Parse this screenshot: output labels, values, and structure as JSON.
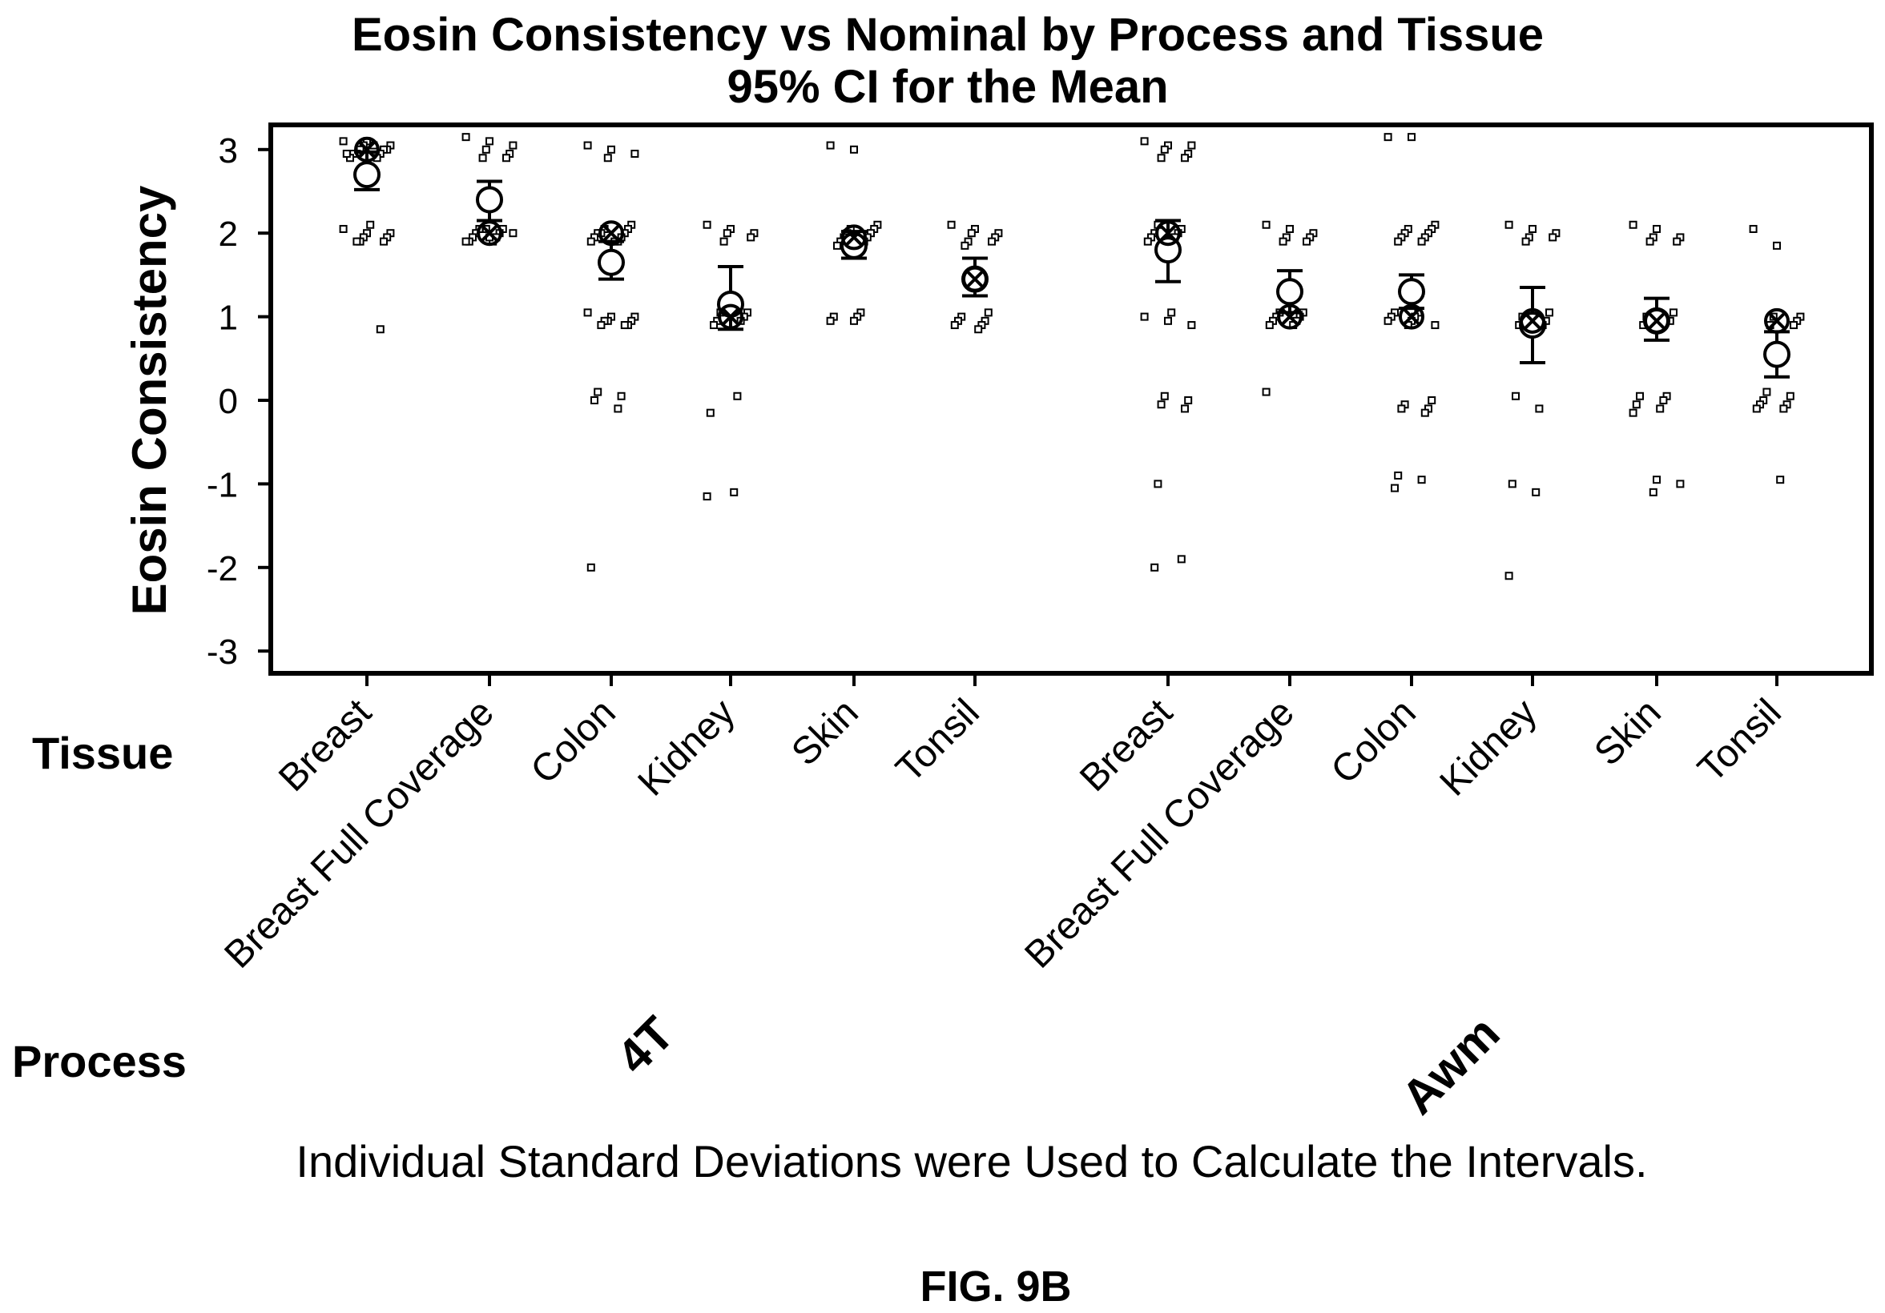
{
  "chart_data": {
    "type": "scatter",
    "title": "Eosin Consistency vs Nominal by Process and Tissue",
    "subtitle": "95% CI for the Mean",
    "ylabel": "Eosin Consistency",
    "ylim": [
      -3.3,
      3.3
    ],
    "yticks": [
      "3",
      "2",
      "1",
      "0",
      "-1",
      "-2",
      "-3"
    ],
    "row_labels": {
      "tissue": "Tissue",
      "process": "Process"
    },
    "note": "Individual Standard Deviations were Used to Calculate the Intervals.",
    "figure_label": "FIG. 9B",
    "groups": [
      {
        "process": "4T",
        "tissues": [
          {
            "tissue": "Breast",
            "mean": 2.7,
            "ci": [
              2.52,
              2.97
            ],
            "median": 3.0,
            "points": [
              3.1,
              3.1,
              3.05,
              3.05,
              3.0,
              3.0,
              3.0,
              2.95,
              2.95,
              2.95,
              2.9,
              2.9,
              3.05,
              2.95,
              2.1,
              2.05,
              2.0,
              2.0,
              1.95,
              1.95,
              1.9,
              1.9,
              1.9,
              0.85
            ]
          },
          {
            "tissue": "Breast Full Coverage",
            "mean": 2.4,
            "ci": [
              2.15,
              2.62
            ],
            "median": 2.0,
            "points": [
              3.15,
              3.1,
              3.05,
              3.0,
              2.95,
              2.9,
              2.9,
              2.05,
              2.05,
              2.0,
              2.0,
              1.95,
              1.95,
              1.9,
              1.9,
              1.9,
              1.95,
              2.0,
              2.05
            ]
          },
          {
            "tissue": "Colon",
            "mean": 1.65,
            "ci": [
              1.45,
              1.9
            ],
            "median": 2.0,
            "points": [
              3.05,
              3.0,
              2.95,
              2.9,
              2.1,
              2.05,
              2.05,
              2.0,
              2.0,
              2.0,
              1.95,
              1.95,
              1.9,
              1.9,
              1.9,
              1.05,
              1.0,
              1.0,
              0.95,
              0.95,
              0.95,
              0.9,
              0.9,
              0.9,
              0.1,
              0.05,
              0.0,
              -0.1,
              -2.0
            ]
          },
          {
            "tissue": "Kidney",
            "mean": 1.15,
            "ci": [
              0.85,
              1.6
            ],
            "median": 1.0,
            "points": [
              2.1,
              2.05,
              2.0,
              2.0,
              1.95,
              1.9,
              1.05,
              1.05,
              1.0,
              0.95,
              0.95,
              0.9,
              0.05,
              -0.15,
              -1.1,
              -1.15
            ]
          },
          {
            "tissue": "Skin",
            "mean": 1.85,
            "ci": [
              1.7,
              2.02
            ],
            "median": 1.95,
            "points": [
              3.05,
              3.0,
              2.1,
              2.05,
              2.05,
              2.0,
              2.0,
              1.95,
              1.95,
              1.9,
              1.9,
              1.85,
              1.05,
              1.0,
              1.0,
              0.95,
              0.95
            ]
          },
          {
            "tissue": "Tonsil",
            "mean": 1.45,
            "ci": [
              1.25,
              1.7
            ],
            "median": 1.45,
            "points": [
              2.1,
              2.05,
              2.0,
              2.0,
              1.95,
              1.9,
              1.9,
              1.85,
              1.05,
              1.0,
              0.95,
              0.95,
              0.9,
              0.9,
              0.85
            ]
          }
        ]
      },
      {
        "process": "Awm",
        "tissues": [
          {
            "tissue": "Breast",
            "mean": 1.8,
            "ci": [
              1.42,
              2.15
            ],
            "median": 2.0,
            "points": [
              3.1,
              3.05,
              3.05,
              3.0,
              2.95,
              2.9,
              2.9,
              2.1,
              2.05,
              2.0,
              2.0,
              1.95,
              1.95,
              1.9,
              1.05,
              1.0,
              0.95,
              0.9,
              0.05,
              0.0,
              -0.05,
              -0.1,
              -1.0,
              -1.9,
              -2.0
            ]
          },
          {
            "tissue": "Breast Full Coverage",
            "mean": 1.3,
            "ci": [
              1.05,
              1.55
            ],
            "median": 1.0,
            "points": [
              2.1,
              2.05,
              2.0,
              1.95,
              1.95,
              1.9,
              1.9,
              1.05,
              1.05,
              1.0,
              1.0,
              0.95,
              0.95,
              0.9,
              0.9,
              0.1
            ]
          },
          {
            "tissue": "Colon",
            "mean": 1.3,
            "ci": [
              1.1,
              1.5
            ],
            "median": 1.0,
            "points": [
              3.15,
              3.15,
              2.1,
              2.05,
              2.05,
              2.0,
              2.0,
              1.95,
              1.95,
              1.9,
              1.9,
              1.05,
              1.05,
              1.0,
              1.0,
              0.95,
              0.95,
              0.9,
              0.9,
              0.0,
              -0.05,
              -0.1,
              -0.1,
              -0.15,
              -0.9,
              -0.95,
              -1.05
            ]
          },
          {
            "tissue": "Kidney",
            "mean": 0.9,
            "ci": [
              0.45,
              1.35
            ],
            "median": 0.95,
            "points": [
              2.1,
              2.05,
              2.0,
              1.95,
              1.95,
              1.9,
              1.05,
              1.0,
              0.95,
              0.9,
              0.9,
              0.05,
              -0.1,
              -1.0,
              -1.1,
              -2.1
            ]
          },
          {
            "tissue": "Skin",
            "mean": 0.95,
            "ci": [
              0.72,
              1.22
            ],
            "median": 0.95,
            "points": [
              2.1,
              2.05,
              1.95,
              1.95,
              1.9,
              1.9,
              1.05,
              1.0,
              0.95,
              0.9,
              0.05,
              0.05,
              0.0,
              -0.05,
              -0.1,
              -0.15,
              -0.95,
              -1.0,
              -1.1
            ]
          },
          {
            "tissue": "Tonsil",
            "mean": 0.55,
            "ci": [
              0.28,
              0.82
            ],
            "median": 0.95,
            "points": [
              2.05,
              1.85,
              1.0,
              1.0,
              0.95,
              0.9,
              0.9,
              0.1,
              0.05,
              0.0,
              -0.05,
              -0.05,
              -0.1,
              -0.1,
              -0.95
            ]
          }
        ]
      }
    ]
  }
}
